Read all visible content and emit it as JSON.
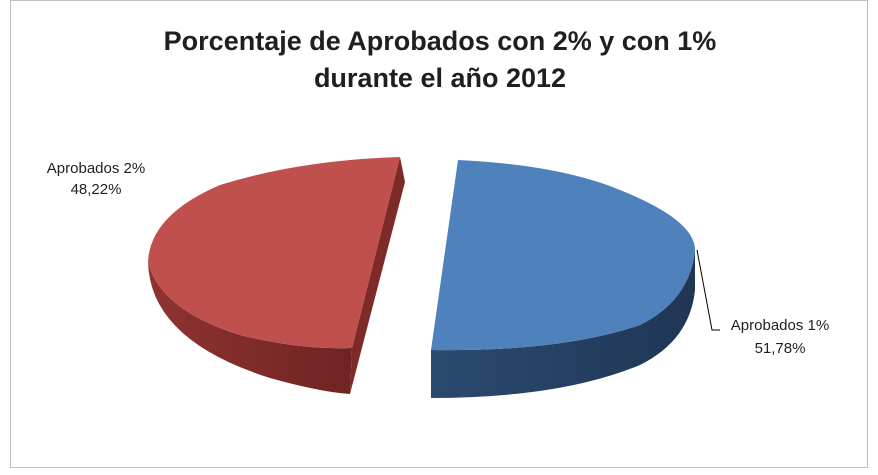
{
  "chart_data": {
    "type": "pie",
    "title_line1": "Porcentaje de Aprobados con 2% y con 1%",
    "title_line2": "durante el año 2012",
    "slices": [
      {
        "name": "Aprobados 1%",
        "value": 51.78,
        "label_value": "51,78%",
        "color": "#4f81bd"
      },
      {
        "name": "Aprobados 2%",
        "value": 48.22,
        "label_value": "48,22%",
        "color": "#c0504d"
      }
    ],
    "exploded": true,
    "style_3d": true,
    "legend": "none (data labels)"
  }
}
